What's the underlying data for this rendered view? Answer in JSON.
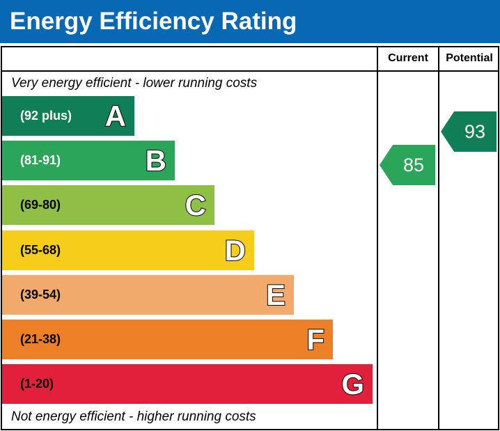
{
  "title": "Energy Efficiency Rating",
  "columns": {
    "current": "Current",
    "potential": "Potential"
  },
  "top_note": "Very energy efficient - lower running costs",
  "bottom_note": "Not energy efficient - higher running costs",
  "chart_data": {
    "type": "bar",
    "title": "Energy Efficiency Rating",
    "categories": [
      "A",
      "B",
      "C",
      "D",
      "E",
      "F",
      "G"
    ],
    "ranges": [
      "(92 plus)",
      "(81-91)",
      "(69-80)",
      "(55-68)",
      "(39-54)",
      "(21-38)",
      "(1-20)"
    ],
    "colors": [
      "#107f57",
      "#2aa55a",
      "#8fbf45",
      "#f5cd1a",
      "#f2aa6c",
      "#ed8027",
      "#e3203c"
    ],
    "current": {
      "value": 85,
      "band": "B",
      "color": "#2aa55a"
    },
    "potential": {
      "value": 93,
      "band": "A",
      "color": "#107f57"
    }
  }
}
